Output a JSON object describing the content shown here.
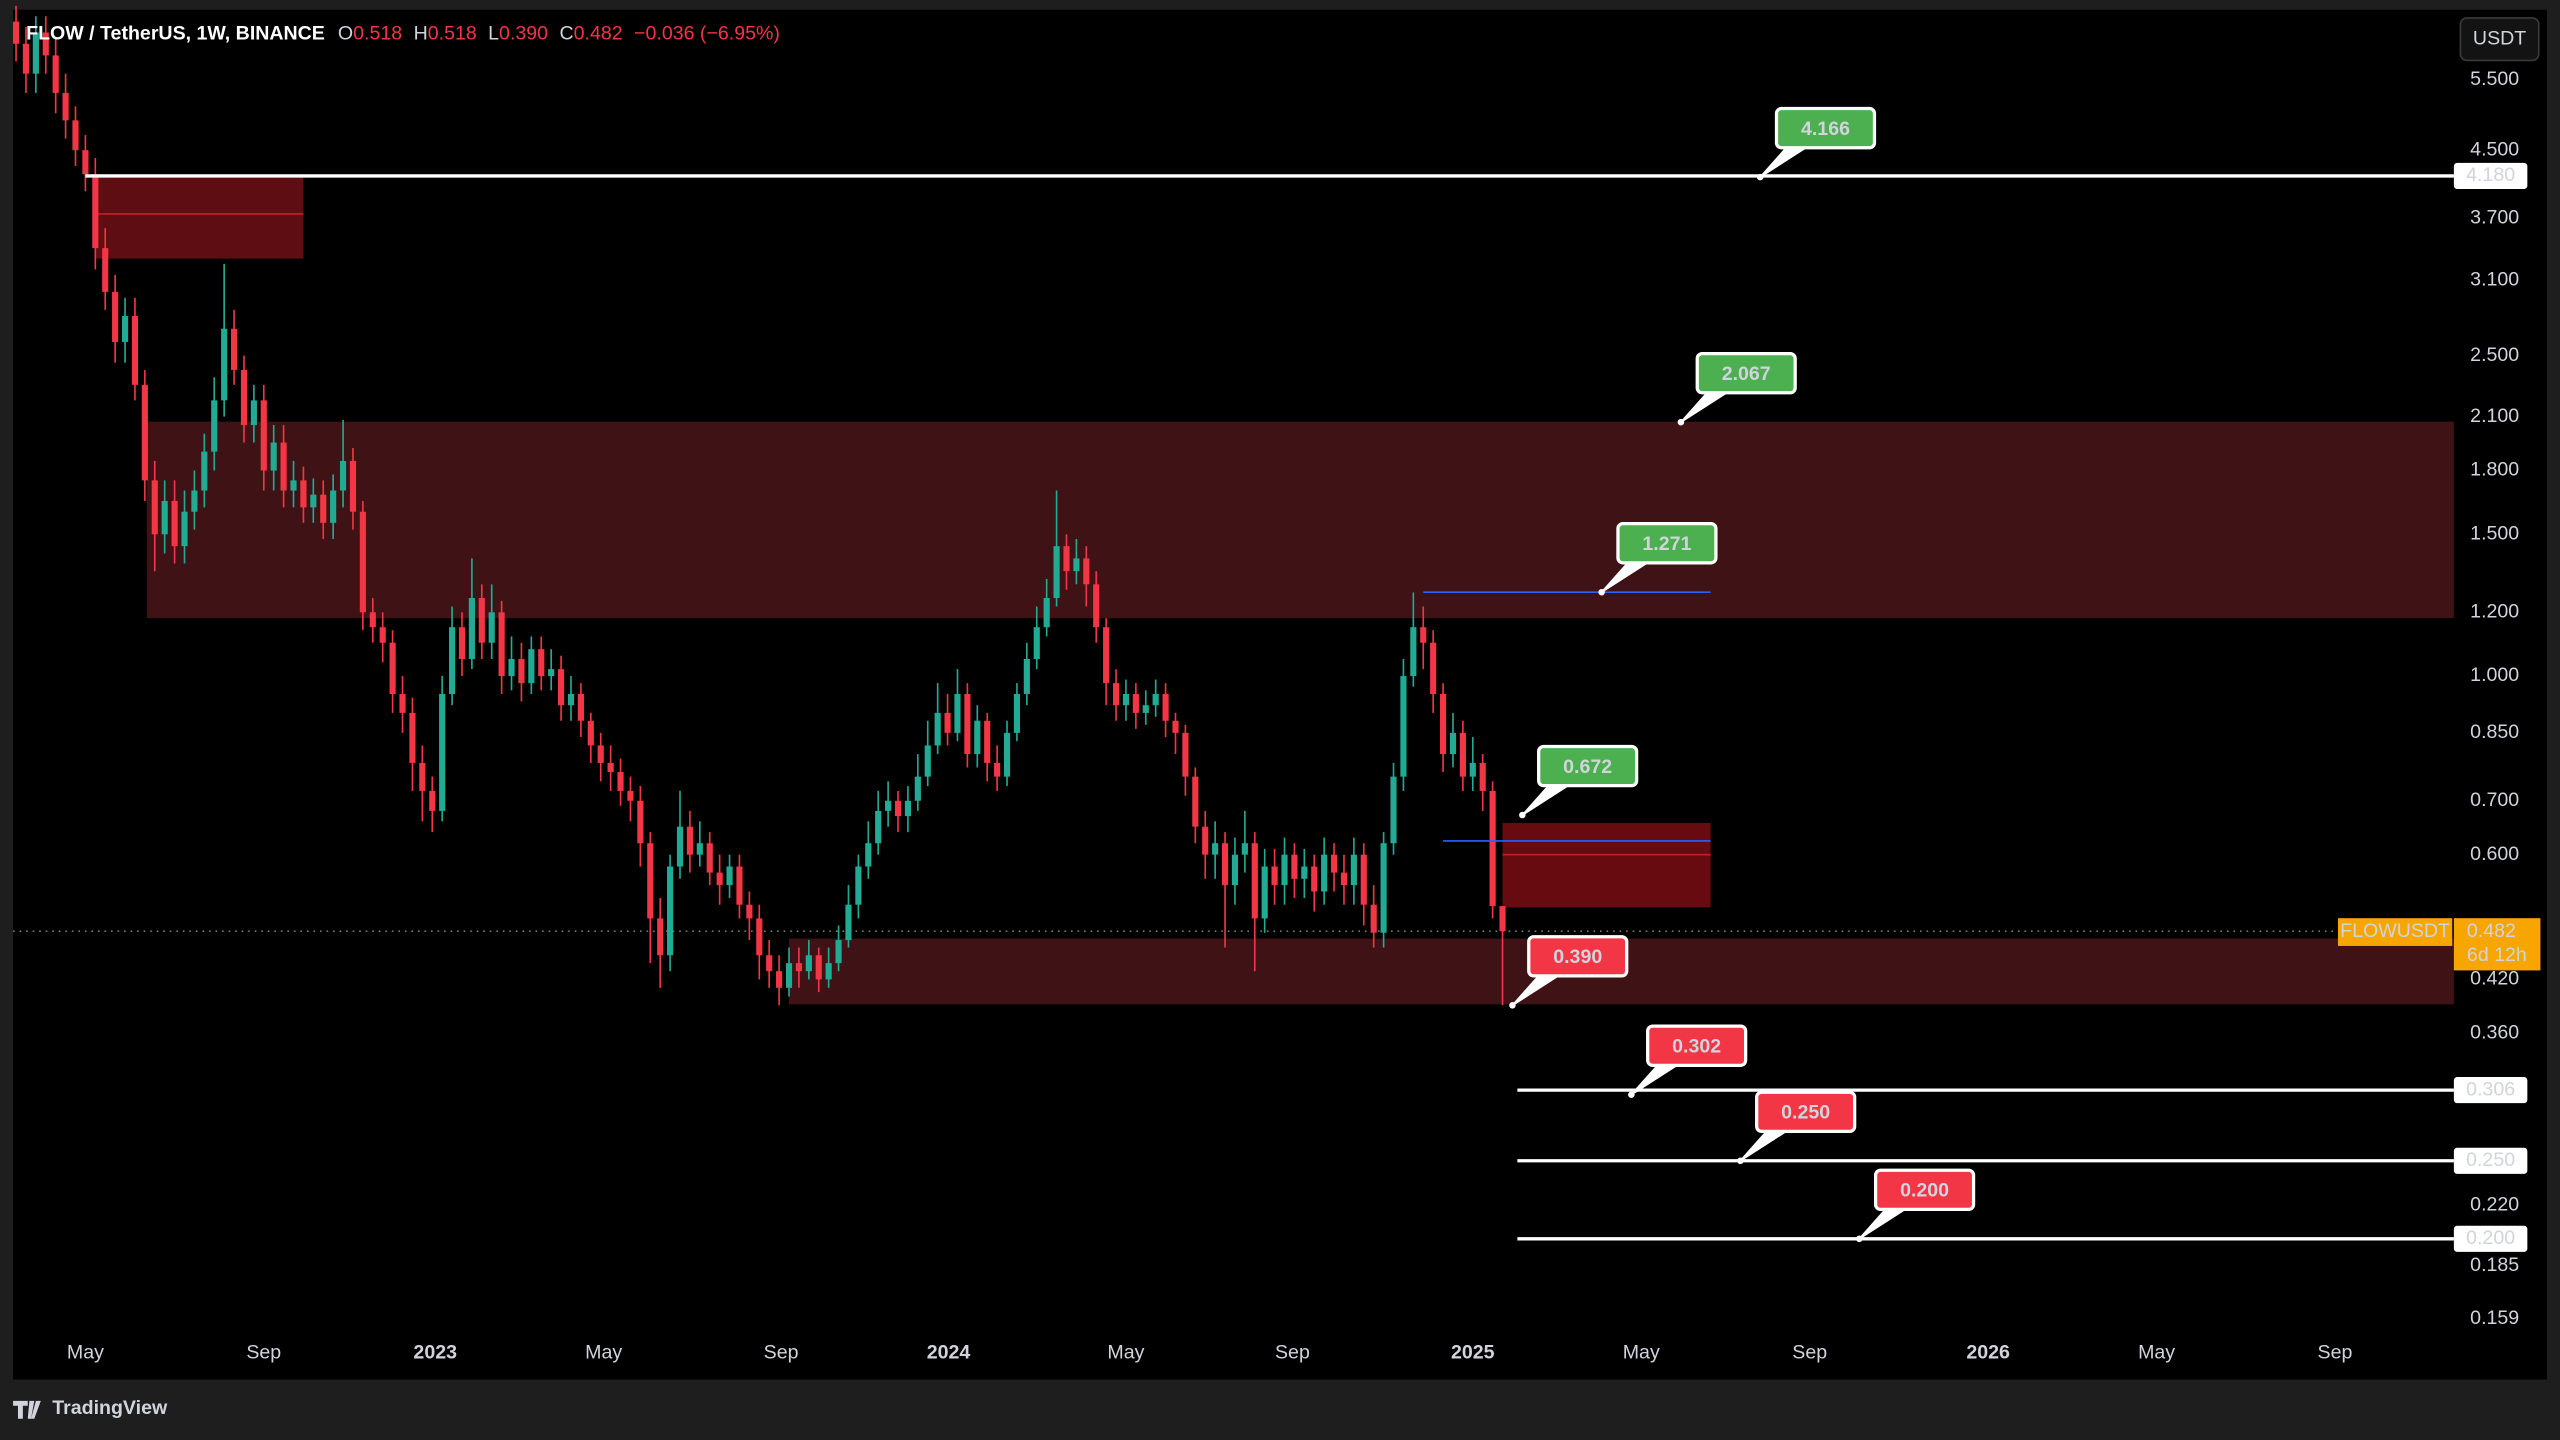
{
  "chart_data": {
    "type": "candlestick",
    "title": "FLOW / TetherUS, 1W, BINANCE",
    "ohlc_labels": [
      "O",
      "H",
      "L",
      "C"
    ],
    "header_values": [
      "0.518",
      "0.518",
      "0.390",
      "0.482"
    ],
    "change": "−0.036 (−6.95%)",
    "currency_button": "USDT",
    "brand": "TradingView",
    "log_scale": true,
    "up_color": "#22ab94",
    "down_color": "#f23645",
    "xlim": [
      -0.3,
      246
    ],
    "ylim": [
      0.1356,
      6.66
    ],
    "xticks": [
      {
        "value": 7,
        "label": "May"
      },
      {
        "value": 25,
        "label": "Sep"
      },
      {
        "value": 42.3,
        "label": "2023"
      },
      {
        "value": 59.3,
        "label": "May"
      },
      {
        "value": 77.2,
        "label": "Sep"
      },
      {
        "value": 94.1,
        "label": "2024"
      },
      {
        "value": 112,
        "label": "May"
      },
      {
        "value": 128.8,
        "label": "Sep"
      },
      {
        "value": 147,
        "label": "2025"
      },
      {
        "value": 164,
        "label": "May"
      },
      {
        "value": 181,
        "label": "Sep"
      },
      {
        "value": 199,
        "label": "2026"
      },
      {
        "value": 216,
        "label": "May"
      },
      {
        "value": 234,
        "label": "Sep"
      }
    ],
    "yticks": [
      {
        "value": 5.5,
        "label": "5.500"
      },
      {
        "value": 4.5,
        "label": "4.500"
      },
      {
        "value": 3.7,
        "label": "3.700"
      },
      {
        "value": 3.1,
        "label": "3.100"
      },
      {
        "value": 2.5,
        "label": "2.500"
      },
      {
        "value": 2.1,
        "label": "2.100"
      },
      {
        "value": 1.8,
        "label": "1.800"
      },
      {
        "value": 1.5,
        "label": "1.500"
      },
      {
        "value": 1.2,
        "label": "1.200"
      },
      {
        "value": 1,
        "label": "1.000"
      },
      {
        "value": 0.85,
        "label": "0.850"
      },
      {
        "value": 0.7,
        "label": "0.700"
      },
      {
        "value": 0.6,
        "label": "0.600"
      },
      {
        "value": 0.42,
        "label": "0.420"
      },
      {
        "value": 0.36,
        "label": "0.360"
      },
      {
        "value": 0.22,
        "label": "0.220"
      },
      {
        "value": 0.185,
        "label": "0.185"
      },
      {
        "value": 0.159,
        "label": "0.159"
      }
    ],
    "candles": [
      [
        6.5,
        6.8,
        5.8,
        6.1
      ],
      [
        6.1,
        6.4,
        5.3,
        5.6
      ],
      [
        5.6,
        6.6,
        5.3,
        6.3
      ],
      [
        6.3,
        6.6,
        5.6,
        5.9
      ],
      [
        5.9,
        6.2,
        5.0,
        5.3
      ],
      [
        5.3,
        5.6,
        4.65,
        4.9
      ],
      [
        4.9,
        5.1,
        4.3,
        4.5
      ],
      [
        4.5,
        4.7,
        4.0,
        4.2
      ],
      [
        4.2,
        4.4,
        3.2,
        3.4
      ],
      [
        3.4,
        3.6,
        2.85,
        3.0
      ],
      [
        3.0,
        3.15,
        2.45,
        2.6
      ],
      [
        2.6,
        2.95,
        2.45,
        2.8
      ],
      [
        2.8,
        2.95,
        2.2,
        2.3
      ],
      [
        2.3,
        2.4,
        1.65,
        1.75
      ],
      [
        1.75,
        1.85,
        1.35,
        1.5
      ],
      [
        1.5,
        1.75,
        1.42,
        1.65
      ],
      [
        1.65,
        1.75,
        1.38,
        1.45
      ],
      [
        1.45,
        1.7,
        1.38,
        1.6
      ],
      [
        1.6,
        1.8,
        1.52,
        1.7
      ],
      [
        1.7,
        2.0,
        1.62,
        1.9
      ],
      [
        1.9,
        2.35,
        1.8,
        2.2
      ],
      [
        2.2,
        3.25,
        2.1,
        2.7
      ],
      [
        2.7,
        2.85,
        2.3,
        2.4
      ],
      [
        2.4,
        2.5,
        1.95,
        2.05
      ],
      [
        2.05,
        2.3,
        1.95,
        2.2
      ],
      [
        2.2,
        2.3,
        1.7,
        1.8
      ],
      [
        1.8,
        2.05,
        1.7,
        1.95
      ],
      [
        1.95,
        2.05,
        1.62,
        1.7
      ],
      [
        1.7,
        1.85,
        1.62,
        1.75
      ],
      [
        1.75,
        1.82,
        1.55,
        1.62
      ],
      [
        1.62,
        1.76,
        1.55,
        1.68
      ],
      [
        1.68,
        1.75,
        1.48,
        1.55
      ],
      [
        1.55,
        1.78,
        1.48,
        1.7
      ],
      [
        1.7,
        2.08,
        1.62,
        1.85
      ],
      [
        1.85,
        1.92,
        1.52,
        1.6
      ],
      [
        1.6,
        1.65,
        1.14,
        1.2
      ],
      [
        1.2,
        1.25,
        1.1,
        1.15
      ],
      [
        1.15,
        1.2,
        1.04,
        1.1
      ],
      [
        1.1,
        1.14,
        0.9,
        0.95
      ],
      [
        0.95,
        1.0,
        0.85,
        0.9
      ],
      [
        0.9,
        0.94,
        0.72,
        0.78
      ],
      [
        0.78,
        0.82,
        0.66,
        0.72
      ],
      [
        0.72,
        0.75,
        0.64,
        0.68
      ],
      [
        0.68,
        1.0,
        0.66,
        0.95
      ],
      [
        0.95,
        1.22,
        0.92,
        1.15
      ],
      [
        1.15,
        1.2,
        1.0,
        1.05
      ],
      [
        1.05,
        1.4,
        1.02,
        1.25
      ],
      [
        1.25,
        1.3,
        1.05,
        1.1
      ],
      [
        1.1,
        1.3,
        1.05,
        1.2
      ],
      [
        1.2,
        1.24,
        0.95,
        1.0
      ],
      [
        1.0,
        1.12,
        0.96,
        1.05
      ],
      [
        1.05,
        1.1,
        0.93,
        0.98
      ],
      [
        0.98,
        1.12,
        0.95,
        1.08
      ],
      [
        1.08,
        1.12,
        0.96,
        1.0
      ],
      [
        1.0,
        1.08,
        0.96,
        1.02
      ],
      [
        1.02,
        1.06,
        0.88,
        0.92
      ],
      [
        0.92,
        1.0,
        0.88,
        0.95
      ],
      [
        0.95,
        0.98,
        0.84,
        0.88
      ],
      [
        0.88,
        0.9,
        0.78,
        0.82
      ],
      [
        0.82,
        0.85,
        0.74,
        0.78
      ],
      [
        0.78,
        0.82,
        0.72,
        0.76
      ],
      [
        0.76,
        0.79,
        0.69,
        0.72
      ],
      [
        0.72,
        0.75,
        0.66,
        0.7
      ],
      [
        0.7,
        0.73,
        0.58,
        0.62
      ],
      [
        0.62,
        0.64,
        0.44,
        0.5
      ],
      [
        0.5,
        0.53,
        0.41,
        0.45
      ],
      [
        0.45,
        0.6,
        0.43,
        0.58
      ],
      [
        0.58,
        0.72,
        0.56,
        0.65
      ],
      [
        0.65,
        0.68,
        0.57,
        0.6
      ],
      [
        0.6,
        0.66,
        0.58,
        0.62
      ],
      [
        0.62,
        0.64,
        0.55,
        0.57
      ],
      [
        0.57,
        0.6,
        0.52,
        0.55
      ],
      [
        0.55,
        0.6,
        0.53,
        0.58
      ],
      [
        0.58,
        0.6,
        0.5,
        0.52
      ],
      [
        0.52,
        0.54,
        0.47,
        0.5
      ],
      [
        0.5,
        0.52,
        0.42,
        0.45
      ],
      [
        0.45,
        0.47,
        0.41,
        0.43
      ],
      [
        0.43,
        0.45,
        0.39,
        0.41
      ],
      [
        0.41,
        0.46,
        0.4,
        0.44
      ],
      [
        0.44,
        0.46,
        0.41,
        0.43
      ],
      [
        0.43,
        0.47,
        0.42,
        0.45
      ],
      [
        0.45,
        0.46,
        0.405,
        0.42
      ],
      [
        0.42,
        0.46,
        0.41,
        0.44
      ],
      [
        0.44,
        0.49,
        0.43,
        0.47
      ],
      [
        0.47,
        0.55,
        0.46,
        0.52
      ],
      [
        0.52,
        0.6,
        0.5,
        0.58
      ],
      [
        0.58,
        0.66,
        0.56,
        0.62
      ],
      [
        0.62,
        0.72,
        0.6,
        0.68
      ],
      [
        0.68,
        0.74,
        0.65,
        0.7
      ],
      [
        0.7,
        0.72,
        0.64,
        0.67
      ],
      [
        0.67,
        0.73,
        0.64,
        0.7
      ],
      [
        0.7,
        0.8,
        0.68,
        0.75
      ],
      [
        0.75,
        0.88,
        0.73,
        0.82
      ],
      [
        0.82,
        0.98,
        0.8,
        0.9
      ],
      [
        0.9,
        0.95,
        0.82,
        0.85
      ],
      [
        0.85,
        1.02,
        0.83,
        0.95
      ],
      [
        0.95,
        0.98,
        0.77,
        0.8
      ],
      [
        0.8,
        0.92,
        0.77,
        0.88
      ],
      [
        0.88,
        0.9,
        0.74,
        0.78
      ],
      [
        0.78,
        0.82,
        0.72,
        0.75
      ],
      [
        0.75,
        0.88,
        0.73,
        0.85
      ],
      [
        0.85,
        0.98,
        0.83,
        0.95
      ],
      [
        0.95,
        1.1,
        0.92,
        1.05
      ],
      [
        1.05,
        1.22,
        1.02,
        1.15
      ],
      [
        1.15,
        1.32,
        1.12,
        1.25
      ],
      [
        1.25,
        1.7,
        1.22,
        1.45
      ],
      [
        1.45,
        1.5,
        1.28,
        1.35
      ],
      [
        1.35,
        1.48,
        1.3,
        1.4
      ],
      [
        1.4,
        1.45,
        1.22,
        1.3
      ],
      [
        1.3,
        1.35,
        1.1,
        1.15
      ],
      [
        1.15,
        1.18,
        0.92,
        0.98
      ],
      [
        0.98,
        1.02,
        0.88,
        0.92
      ],
      [
        0.92,
        0.99,
        0.88,
        0.95
      ],
      [
        0.95,
        0.98,
        0.86,
        0.9
      ],
      [
        0.9,
        0.96,
        0.87,
        0.92
      ],
      [
        0.92,
        0.99,
        0.89,
        0.95
      ],
      [
        0.95,
        0.98,
        0.84,
        0.88
      ],
      [
        0.88,
        0.9,
        0.8,
        0.85
      ],
      [
        0.85,
        0.87,
        0.71,
        0.75
      ],
      [
        0.75,
        0.77,
        0.62,
        0.65
      ],
      [
        0.65,
        0.68,
        0.56,
        0.6
      ],
      [
        0.6,
        0.66,
        0.56,
        0.62
      ],
      [
        0.62,
        0.64,
        0.46,
        0.55
      ],
      [
        0.55,
        0.63,
        0.52,
        0.6
      ],
      [
        0.6,
        0.68,
        0.57,
        0.62
      ],
      [
        0.62,
        0.64,
        0.43,
        0.5
      ],
      [
        0.5,
        0.61,
        0.48,
        0.58
      ],
      [
        0.58,
        0.61,
        0.52,
        0.55
      ],
      [
        0.55,
        0.63,
        0.52,
        0.6
      ],
      [
        0.6,
        0.62,
        0.53,
        0.56
      ],
      [
        0.56,
        0.61,
        0.53,
        0.58
      ],
      [
        0.58,
        0.6,
        0.51,
        0.54
      ],
      [
        0.54,
        0.63,
        0.52,
        0.6
      ],
      [
        0.6,
        0.62,
        0.54,
        0.57
      ],
      [
        0.57,
        0.6,
        0.52,
        0.55
      ],
      [
        0.55,
        0.63,
        0.52,
        0.6
      ],
      [
        0.6,
        0.62,
        0.49,
        0.52
      ],
      [
        0.52,
        0.55,
        0.46,
        0.48
      ],
      [
        0.48,
        0.64,
        0.46,
        0.62
      ],
      [
        0.62,
        0.78,
        0.6,
        0.75
      ],
      [
        0.75,
        1.05,
        0.72,
        1.0
      ],
      [
        1.0,
        1.27,
        0.97,
        1.15
      ],
      [
        1.15,
        1.22,
        1.02,
        1.1
      ],
      [
        1.1,
        1.14,
        0.9,
        0.95
      ],
      [
        0.95,
        0.98,
        0.76,
        0.8
      ],
      [
        0.8,
        0.9,
        0.77,
        0.85
      ],
      [
        0.85,
        0.88,
        0.72,
        0.75
      ],
      [
        0.75,
        0.84,
        0.72,
        0.78
      ],
      [
        0.78,
        0.8,
        0.68,
        0.72
      ],
      [
        0.72,
        0.74,
        0.5,
        0.518
      ],
      [
        0.518,
        0.518,
        0.39,
        0.482
      ]
    ],
    "zones": [
      {
        "from": 8,
        "to": 29,
        "top": 4.2,
        "bottom": 3.3,
        "mid": 3.75,
        "color": "#6e0f16"
      },
      {
        "from": 13.2,
        "to": 246,
        "top": 2.07,
        "bottom": 1.18,
        "color": "#4a1519"
      },
      {
        "from": 78,
        "to": 246,
        "top": 0.472,
        "bottom": 0.391,
        "color": "#4a1519"
      },
      {
        "from": 150,
        "to": 171,
        "top": 0.657,
        "bottom": 0.516,
        "mid": 0.6,
        "color": "#7a0d13"
      }
    ],
    "trend_lines": [
      {
        "value": 1.271,
        "from": 142,
        "to": 171,
        "color": "#2962ff"
      },
      {
        "value": 0.624,
        "from": 144,
        "to": 171,
        "color": "#2962ff"
      }
    ],
    "levels": [
      {
        "value": 4.18,
        "label": "4.180",
        "from": 7
      },
      {
        "value": 0.306,
        "label": "0.306",
        "from": 151.5
      },
      {
        "value": 0.25,
        "label": "0.250",
        "from": 151.5
      },
      {
        "value": 0.2,
        "label": "0.200",
        "from": 151.5
      }
    ],
    "annotations": [
      {
        "value": 4.166,
        "x": 176,
        "color": "#4caf50"
      },
      {
        "value": 2.067,
        "x": 168,
        "color": "#4caf50"
      },
      {
        "value": 1.271,
        "x": 160,
        "color": "#4caf50"
      },
      {
        "value": 0.672,
        "x": 152,
        "color": "#4caf50"
      },
      {
        "value": 0.39,
        "label": "0.390",
        "x": 151,
        "color": "#f23645"
      },
      {
        "value": 0.302,
        "x": 163,
        "color": "#f23645"
      },
      {
        "value": 0.25,
        "label": "0.250",
        "x": 174,
        "color": "#f23645"
      },
      {
        "value": 0.2,
        "label": "0.200",
        "x": 186,
        "color": "#f23645"
      }
    ],
    "last_price": {
      "symbol": "FLOWUSDT",
      "value": 0.482,
      "countdown": "6d 12h",
      "color": "#f7a600"
    }
  }
}
